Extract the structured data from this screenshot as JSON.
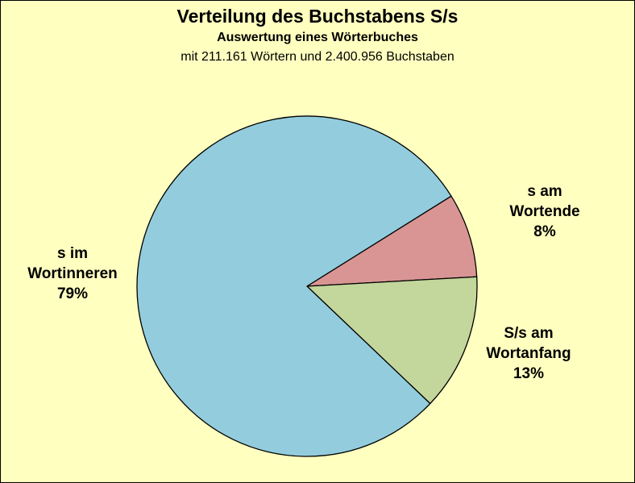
{
  "chart_data": {
    "type": "pie",
    "title": "Verteilung des Buchstabens S/s",
    "subtitle": "Auswertung eines Wörterbuches",
    "subtitle2": "mit 211.161 Wörtern und 2.400.956 Buchstaben",
    "slices": [
      {
        "label_lines": [
          "s am",
          "Wortende"
        ],
        "value_label": "8%",
        "value": 8,
        "color": "#d99594"
      },
      {
        "label_lines": [
          "S/s am",
          "Wortanfang"
        ],
        "value_label": "13%",
        "value": 13,
        "color": "#c3d69b"
      },
      {
        "label_lines": [
          "s im",
          "Wortinneren"
        ],
        "value_label": "79%",
        "value": 79,
        "color": "#93cddd"
      }
    ],
    "background_color": "#ffffc0"
  }
}
